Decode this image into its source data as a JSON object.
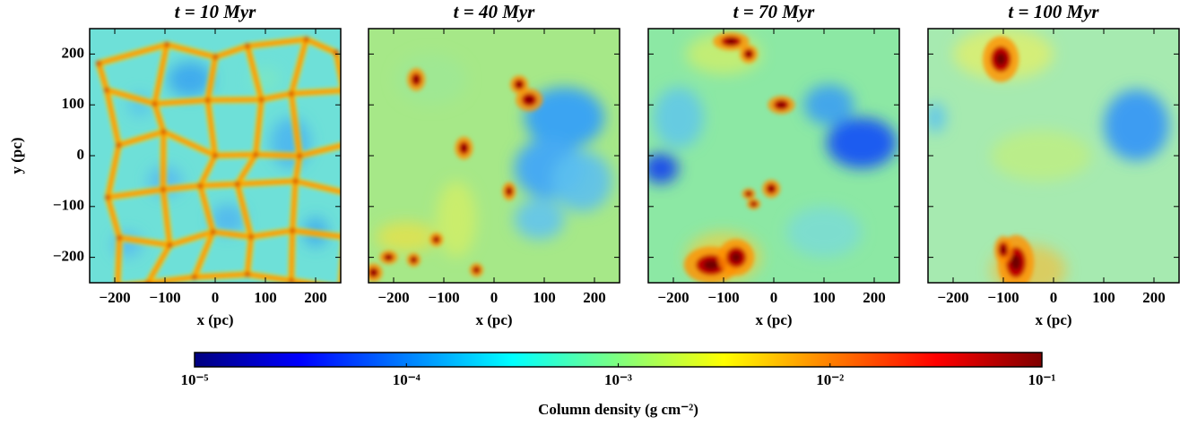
{
  "chart_data": [
    {
      "type": "image",
      "title": "t = 10 Myr",
      "xlabel": "x (pc)",
      "ylabel": "y (pc)",
      "show_ytick_labels": true,
      "xlim": [
        -250,
        250
      ],
      "ylim": [
        -250,
        250
      ],
      "xticks": [
        {
          "value": -200,
          "label": "−200"
        },
        {
          "value": -100,
          "label": "−100"
        },
        0,
        100,
        200
      ],
      "yticks": [
        {
          "value": -200,
          "label": "−200"
        },
        {
          "value": -100,
          "label": "−100"
        },
        0,
        100,
        200
      ]
    },
    {
      "type": "image",
      "title": "t = 40 Myr",
      "xlabel": "x (pc)",
      "show_ytick_labels": false,
      "xlim": [
        -250,
        250
      ],
      "ylim": [
        -250,
        250
      ],
      "xticks": [
        {
          "value": -200,
          "label": "−200"
        },
        {
          "value": -100,
          "label": "−100"
        },
        0,
        100,
        200
      ],
      "yticks": [
        -200,
        -100,
        0,
        100,
        200
      ]
    },
    {
      "type": "image",
      "title": "t = 70 Myr",
      "xlabel": "x (pc)",
      "show_ytick_labels": false,
      "xlim": [
        -250,
        250
      ],
      "ylim": [
        -250,
        250
      ],
      "xticks": [
        {
          "value": -200,
          "label": "−200"
        },
        {
          "value": -100,
          "label": "−100"
        },
        0,
        100,
        200
      ],
      "yticks": [
        -200,
        -100,
        0,
        100,
        200
      ]
    },
    {
      "type": "image",
      "title": "t = 100 Myr",
      "xlabel": "x (pc)",
      "show_ytick_labels": false,
      "xlim": [
        -250,
        250
      ],
      "ylim": [
        -250,
        250
      ],
      "xticks": [
        {
          "value": -200,
          "label": "−200"
        },
        {
          "value": -100,
          "label": "−100"
        },
        0,
        100,
        200
      ],
      "yticks": [
        -200,
        -100,
        0,
        100,
        200
      ]
    },
    {
      "type": "colorbar",
      "label": "Column density (g cm⁻²)",
      "scale": "log",
      "lim": [
        1e-05,
        0.1
      ],
      "ticks": [
        {
          "value": 1e-05,
          "label": "10⁻⁵"
        },
        {
          "value": 0.0001,
          "label": "10⁻⁴"
        },
        {
          "value": 0.001,
          "label": "10⁻³"
        },
        {
          "value": 0.01,
          "label": "10⁻²"
        },
        {
          "value": 0.1,
          "label": "10⁻¹"
        }
      ],
      "colors": [
        "#00007f",
        "#0000ff",
        "#007fff",
        "#00ffff",
        "#7fff7f",
        "#ffff00",
        "#ff7f00",
        "#ff0000",
        "#7f0000"
      ]
    }
  ]
}
